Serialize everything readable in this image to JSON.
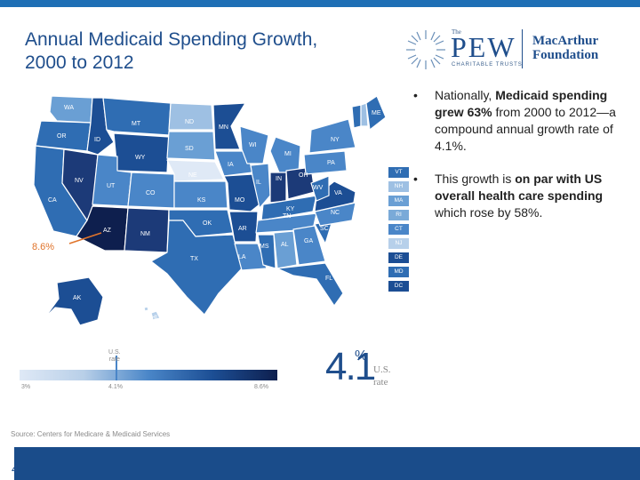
{
  "title": {
    "line1": "Annual Medicaid Spending Growth,",
    "line2": "2000 to 2012"
  },
  "logos": {
    "pew_the": "The",
    "pew": "PEW",
    "pew_sub": "CHARITABLE TRUSTS",
    "mac_line1": "MacArthur",
    "mac_line2": "Foundation"
  },
  "map": {
    "states": [
      {
        "abbr": "WA"
      },
      {
        "abbr": "OR"
      },
      {
        "abbr": "CA"
      },
      {
        "abbr": "ID"
      },
      {
        "abbr": "NV"
      },
      {
        "abbr": "MT"
      },
      {
        "abbr": "WY"
      },
      {
        "abbr": "UT"
      },
      {
        "abbr": "AZ"
      },
      {
        "abbr": "CO"
      },
      {
        "abbr": "NM"
      },
      {
        "abbr": "ND"
      },
      {
        "abbr": "SD"
      },
      {
        "abbr": "NE"
      },
      {
        "abbr": "KS"
      },
      {
        "abbr": "OK"
      },
      {
        "abbr": "TX"
      },
      {
        "abbr": "MN"
      },
      {
        "abbr": "IA"
      },
      {
        "abbr": "MO"
      },
      {
        "abbr": "AR"
      },
      {
        "abbr": "LA"
      },
      {
        "abbr": "WI"
      },
      {
        "abbr": "IL"
      },
      {
        "abbr": "MI"
      },
      {
        "abbr": "IN"
      },
      {
        "abbr": "OH"
      },
      {
        "abbr": "KY"
      },
      {
        "abbr": "TN"
      },
      {
        "abbr": "MS"
      },
      {
        "abbr": "AL"
      },
      {
        "abbr": "GA"
      },
      {
        "abbr": "FL"
      },
      {
        "abbr": "SC"
      },
      {
        "abbr": "NC"
      },
      {
        "abbr": "VA"
      },
      {
        "abbr": "WV"
      },
      {
        "abbr": "PA"
      },
      {
        "abbr": "NY"
      },
      {
        "abbr": "ME"
      },
      {
        "abbr": "AK"
      },
      {
        "abbr": "HI"
      }
    ],
    "boxes": [
      {
        "abbr": "VT",
        "color": "#2f6db3"
      },
      {
        "abbr": "NH",
        "color": "#9ec0e3"
      },
      {
        "abbr": "MA",
        "color": "#6a9fd4"
      },
      {
        "abbr": "RI",
        "color": "#7aaad8"
      },
      {
        "abbr": "CT",
        "color": "#4a86c8"
      },
      {
        "abbr": "NJ",
        "color": "#b7d0ea"
      },
      {
        "abbr": "DE",
        "color": "#1c4e94"
      },
      {
        "abbr": "MD",
        "color": "#2f6db3"
      },
      {
        "abbr": "DC",
        "color": "#1c4e94"
      }
    ],
    "callout": "8.6%"
  },
  "legend": {
    "us_label": "U.S.",
    "us_label2": "rate",
    "min": "3%",
    "mid": "4.1%",
    "max": "8.6%"
  },
  "headline": {
    "rate": "4.1",
    "pct": "%",
    "label1": "U.S.",
    "label2": "rate"
  },
  "bullets": [
    {
      "pre": "Nationally, ",
      "bold": "Medicaid spending grew 63%",
      "post": " from 2000 to 2012—a compound annual growth rate of 4.1%."
    },
    {
      "pre": "This growth is ",
      "bold": "on par with US overall health care spending",
      "post": " which rose by 58%."
    }
  ],
  "source": "Source: Centers for Medicare & Medicaid Services",
  "page_number": "4",
  "colors": {
    "accent": "#1f4e8c",
    "footer": "#1a4c8a",
    "callout": "#e0732a"
  }
}
